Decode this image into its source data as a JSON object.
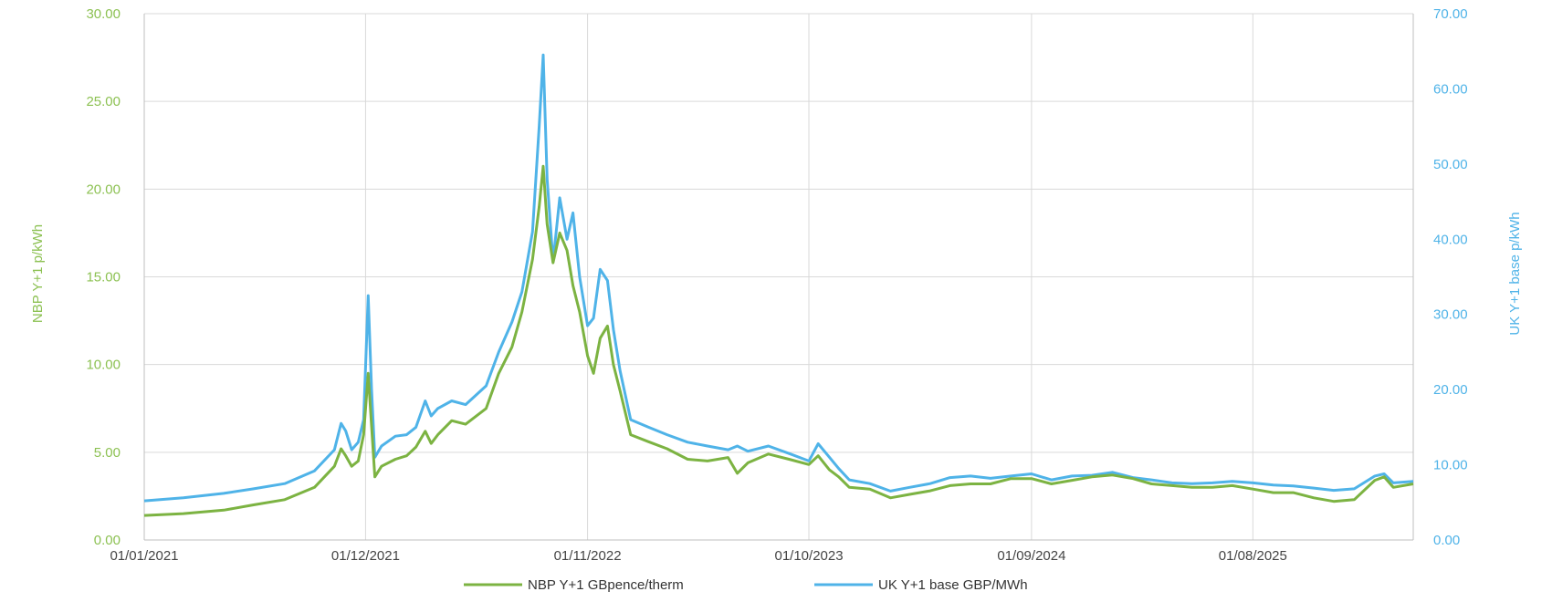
{
  "chart_data": {
    "type": "line",
    "xlabel": "",
    "ylabel_left": "NBP Y+1 p/kWh",
    "ylabel_right": "UK Y+1 base p/kWh",
    "x_ticks": [
      "01/01/2021",
      "01/12/2021",
      "01/11/2022",
      "01/10/2023",
      "01/09/2024",
      "01/08/2025"
    ],
    "x_range": [
      "2021-01-01",
      "2026-03-31"
    ],
    "y_left_ticks": [
      "0.00",
      "5.00",
      "10.00",
      "15.00",
      "20.00",
      "25.00",
      "30.00"
    ],
    "y_left_range": [
      0,
      30
    ],
    "y_right_ticks": [
      "0.00",
      "10.00",
      "20.00",
      "30.00",
      "40.00",
      "50.00",
      "60.00",
      "70.00"
    ],
    "y_right_range": [
      0,
      70
    ],
    "grid": "vertical-and-horizontal",
    "legend_position": "bottom",
    "colors": {
      "left_axis": "#8cc152",
      "right_axis": "#4fb3e8"
    },
    "series": [
      {
        "name": "NBP Y+1 GBpence/therm",
        "axis": "left",
        "color": "#7cb342",
        "points": [
          [
            "2021-01-01",
            1.4
          ],
          [
            "2021-03-01",
            1.5
          ],
          [
            "2021-05-01",
            1.7
          ],
          [
            "2021-06-15",
            2.0
          ],
          [
            "2021-08-01",
            2.3
          ],
          [
            "2021-09-15",
            3.0
          ],
          [
            "2021-10-15",
            4.2
          ],
          [
            "2021-10-25",
            5.2
          ],
          [
            "2021-11-01",
            4.8
          ],
          [
            "2021-11-10",
            4.2
          ],
          [
            "2021-11-20",
            4.5
          ],
          [
            "2021-11-28",
            6.0
          ],
          [
            "2021-12-05",
            9.5
          ],
          [
            "2021-12-10",
            6.5
          ],
          [
            "2021-12-15",
            3.6
          ],
          [
            "2021-12-25",
            4.2
          ],
          [
            "2022-01-15",
            4.6
          ],
          [
            "2022-02-01",
            4.8
          ],
          [
            "2022-02-15",
            5.3
          ],
          [
            "2022-03-01",
            6.2
          ],
          [
            "2022-03-10",
            5.5
          ],
          [
            "2022-03-20",
            6.0
          ],
          [
            "2022-04-10",
            6.8
          ],
          [
            "2022-05-01",
            6.6
          ],
          [
            "2022-06-01",
            7.5
          ],
          [
            "2022-06-20",
            9.5
          ],
          [
            "2022-07-10",
            11.0
          ],
          [
            "2022-07-25",
            13.0
          ],
          [
            "2022-08-10",
            16.0
          ],
          [
            "2022-08-20",
            19.0
          ],
          [
            "2022-08-26",
            21.3
          ],
          [
            "2022-09-01",
            18.0
          ],
          [
            "2022-09-10",
            15.8
          ],
          [
            "2022-09-20",
            17.5
          ],
          [
            "2022-10-01",
            16.5
          ],
          [
            "2022-10-10",
            14.5
          ],
          [
            "2022-10-20",
            13.0
          ],
          [
            "2022-11-01",
            10.5
          ],
          [
            "2022-11-10",
            9.5
          ],
          [
            "2022-11-20",
            11.5
          ],
          [
            "2022-12-01",
            12.2
          ],
          [
            "2022-12-10",
            10.0
          ],
          [
            "2022-12-20",
            8.5
          ],
          [
            "2023-01-05",
            6.0
          ],
          [
            "2023-02-01",
            5.6
          ],
          [
            "2023-03-01",
            5.2
          ],
          [
            "2023-04-01",
            4.6
          ],
          [
            "2023-05-01",
            4.5
          ],
          [
            "2023-06-01",
            4.7
          ],
          [
            "2023-06-15",
            3.8
          ],
          [
            "2023-07-01",
            4.4
          ],
          [
            "2023-08-01",
            4.9
          ],
          [
            "2023-09-01",
            4.6
          ],
          [
            "2023-10-01",
            4.3
          ],
          [
            "2023-10-15",
            4.8
          ],
          [
            "2023-11-01",
            4.0
          ],
          [
            "2023-11-15",
            3.6
          ],
          [
            "2023-12-01",
            3.0
          ],
          [
            "2024-01-01",
            2.9
          ],
          [
            "2024-02-01",
            2.4
          ],
          [
            "2024-03-01",
            2.6
          ],
          [
            "2024-04-01",
            2.8
          ],
          [
            "2024-05-01",
            3.1
          ],
          [
            "2024-06-01",
            3.2
          ],
          [
            "2024-07-01",
            3.2
          ],
          [
            "2024-08-01",
            3.5
          ],
          [
            "2024-09-01",
            3.5
          ],
          [
            "2024-10-01",
            3.2
          ],
          [
            "2024-11-01",
            3.4
          ],
          [
            "2024-12-01",
            3.6
          ],
          [
            "2025-01-01",
            3.7
          ],
          [
            "2025-02-01",
            3.5
          ],
          [
            "2025-03-01",
            3.2
          ],
          [
            "2025-04-01",
            3.1
          ],
          [
            "2025-05-01",
            3.0
          ],
          [
            "2025-06-01",
            3.0
          ],
          [
            "2025-07-01",
            3.1
          ],
          [
            "2025-08-01",
            2.9
          ],
          [
            "2025-09-01",
            2.7
          ],
          [
            "2025-10-01",
            2.7
          ],
          [
            "2025-11-01",
            2.4
          ],
          [
            "2025-12-01",
            2.2
          ],
          [
            "2026-01-01",
            2.3
          ],
          [
            "2026-02-01",
            3.4
          ],
          [
            "2026-02-15",
            3.6
          ],
          [
            "2026-03-01",
            3.0
          ],
          [
            "2026-03-31",
            3.2
          ]
        ]
      },
      {
        "name": "UK Y+1 base GBP/MWh",
        "axis": "right",
        "color": "#4fb3e8",
        "points": [
          [
            "2021-01-01",
            5.2
          ],
          [
            "2021-03-01",
            5.6
          ],
          [
            "2021-05-01",
            6.2
          ],
          [
            "2021-06-15",
            6.8
          ],
          [
            "2021-08-01",
            7.5
          ],
          [
            "2021-09-15",
            9.2
          ],
          [
            "2021-10-15",
            12.0
          ],
          [
            "2021-10-25",
            15.5
          ],
          [
            "2021-11-01",
            14.5
          ],
          [
            "2021-11-10",
            12.0
          ],
          [
            "2021-11-20",
            13.0
          ],
          [
            "2021-11-28",
            16.0
          ],
          [
            "2021-12-05",
            32.5
          ],
          [
            "2021-12-10",
            20.0
          ],
          [
            "2021-12-15",
            11.0
          ],
          [
            "2021-12-25",
            12.5
          ],
          [
            "2022-01-15",
            13.8
          ],
          [
            "2022-02-01",
            14.0
          ],
          [
            "2022-02-15",
            15.0
          ],
          [
            "2022-03-01",
            18.5
          ],
          [
            "2022-03-10",
            16.5
          ],
          [
            "2022-03-20",
            17.5
          ],
          [
            "2022-04-10",
            18.5
          ],
          [
            "2022-05-01",
            18.0
          ],
          [
            "2022-06-01",
            20.5
          ],
          [
            "2022-06-20",
            25.0
          ],
          [
            "2022-07-10",
            29.0
          ],
          [
            "2022-07-25",
            33.0
          ],
          [
            "2022-08-10",
            41.0
          ],
          [
            "2022-08-20",
            55.0
          ],
          [
            "2022-08-26",
            64.5
          ],
          [
            "2022-09-01",
            48.0
          ],
          [
            "2022-09-10",
            37.0
          ],
          [
            "2022-09-20",
            45.5
          ],
          [
            "2022-10-01",
            40.0
          ],
          [
            "2022-10-10",
            43.5
          ],
          [
            "2022-10-20",
            35.0
          ],
          [
            "2022-11-01",
            28.5
          ],
          [
            "2022-11-10",
            29.5
          ],
          [
            "2022-11-20",
            36.0
          ],
          [
            "2022-12-01",
            34.5
          ],
          [
            "2022-12-10",
            28.0
          ],
          [
            "2022-12-20",
            22.5
          ],
          [
            "2023-01-05",
            16.0
          ],
          [
            "2023-02-01",
            15.0
          ],
          [
            "2023-03-01",
            14.0
          ],
          [
            "2023-04-01",
            13.0
          ],
          [
            "2023-05-01",
            12.5
          ],
          [
            "2023-06-01",
            12.0
          ],
          [
            "2023-06-15",
            12.5
          ],
          [
            "2023-07-01",
            11.8
          ],
          [
            "2023-08-01",
            12.5
          ],
          [
            "2023-09-01",
            11.5
          ],
          [
            "2023-10-01",
            10.5
          ],
          [
            "2023-10-15",
            12.8
          ],
          [
            "2023-11-01",
            11.0
          ],
          [
            "2023-11-15",
            9.5
          ],
          [
            "2023-12-01",
            8.0
          ],
          [
            "2024-01-01",
            7.5
          ],
          [
            "2024-02-01",
            6.5
          ],
          [
            "2024-03-01",
            7.0
          ],
          [
            "2024-04-01",
            7.5
          ],
          [
            "2024-05-01",
            8.3
          ],
          [
            "2024-06-01",
            8.5
          ],
          [
            "2024-07-01",
            8.2
          ],
          [
            "2024-08-01",
            8.5
          ],
          [
            "2024-09-01",
            8.8
          ],
          [
            "2024-10-01",
            8.0
          ],
          [
            "2024-11-01",
            8.5
          ],
          [
            "2024-12-01",
            8.6
          ],
          [
            "2025-01-01",
            9.0
          ],
          [
            "2025-02-01",
            8.3
          ],
          [
            "2025-03-01",
            8.0
          ],
          [
            "2025-04-01",
            7.6
          ],
          [
            "2025-05-01",
            7.5
          ],
          [
            "2025-06-01",
            7.6
          ],
          [
            "2025-07-01",
            7.8
          ],
          [
            "2025-08-01",
            7.6
          ],
          [
            "2025-09-01",
            7.3
          ],
          [
            "2025-10-01",
            7.2
          ],
          [
            "2025-11-01",
            6.9
          ],
          [
            "2025-12-01",
            6.6
          ],
          [
            "2026-01-01",
            6.8
          ],
          [
            "2026-02-01",
            8.5
          ],
          [
            "2026-02-15",
            8.8
          ],
          [
            "2026-03-01",
            7.6
          ],
          [
            "2026-03-31",
            7.8
          ]
        ]
      }
    ]
  }
}
